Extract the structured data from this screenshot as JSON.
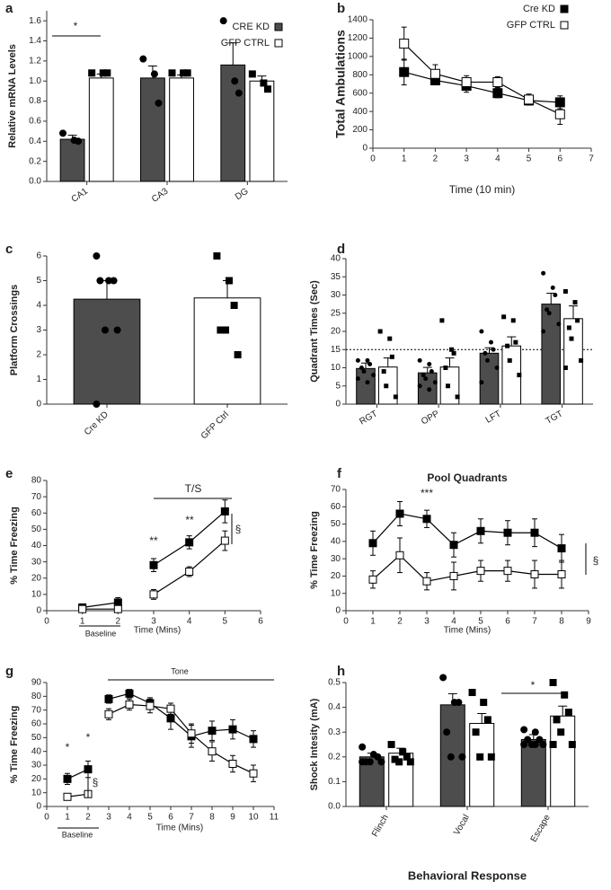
{
  "chart_data": [
    {
      "type": "bar",
      "panel": "a",
      "ylabel": "Relative mRNA Levels",
      "categories": [
        "CA1",
        "CA3",
        "DG"
      ],
      "series": [
        {
          "name": "CRE KD",
          "color": "#4d4d4d",
          "point_marker": "circle",
          "values": [
            0.42,
            1.03,
            1.16
          ],
          "errors": [
            0.04,
            0.12,
            0.22
          ],
          "points": [
            [
              0.48,
              0.41,
              0.4
            ],
            [
              1.22,
              1.07,
              0.78
            ],
            [
              1.6,
              1.0,
              0.88
            ]
          ]
        },
        {
          "name": "GFP CTRL",
          "color": "#ffffff",
          "point_marker": "square",
          "values": [
            1.03,
            1.03,
            1.0
          ],
          "errors": [
            0.04,
            0.03,
            0.05
          ],
          "points": [
            [
              1.08,
              1.08,
              1.08
            ],
            [
              1.08,
              1.08,
              1.08
            ],
            [
              1.07,
              0.98,
              0.92
            ]
          ]
        }
      ],
      "ylim": [
        0,
        1.7
      ],
      "yticks": [
        {
          "value": 0,
          "label": "0.0"
        },
        0.2,
        0.4,
        0.6,
        0.8,
        {
          "value": 1,
          "label": "1.0"
        },
        1.2,
        1.4,
        1.6
      ],
      "legend": "upper right",
      "annotations": [
        "*"
      ]
    },
    {
      "type": "line",
      "panel": "b",
      "xlabel": "Time  (10 min)",
      "ylabel": "Total Ambulations",
      "x": [
        1,
        2,
        3,
        4,
        5,
        6
      ],
      "series": [
        {
          "name": "Cre KD",
          "color": "#000000",
          "marker_fill": "#000000",
          "values": [
            830,
            740,
            680,
            600,
            520,
            500
          ],
          "errors": [
            140,
            50,
            70,
            50,
            50,
            70
          ]
        },
        {
          "name": "GFP CTRL",
          "color": "#000000",
          "marker_fill": "#ffffff",
          "values": [
            1140,
            810,
            720,
            720,
            530,
            370
          ],
          "errors": [
            180,
            100,
            70,
            60,
            60,
            110
          ]
        }
      ],
      "xlim": [
        0,
        7
      ],
      "xticks": [
        0,
        1,
        2,
        3,
        4,
        5,
        6,
        7
      ],
      "ylim": [
        0,
        1400
      ],
      "yticks": [
        0,
        200,
        400,
        600,
        800,
        1000,
        1200,
        1400
      ],
      "legend": "upper right"
    },
    {
      "type": "bar",
      "panel": "c",
      "ylabel": "Platform Crossings",
      "categories": [
        "Cre KD",
        "GFP Ctrl"
      ],
      "values": [
        4.25,
        4.3
      ],
      "errors": [
        0.75,
        0.7
      ],
      "colors": [
        "#4d4d4d",
        "#ffffff"
      ],
      "point_markers": [
        "circle",
        "square"
      ],
      "points": [
        [
          6,
          5,
          5,
          5,
          3,
          3,
          0
        ],
        [
          6,
          5,
          4,
          3,
          3,
          2
        ]
      ],
      "ylim": [
        0,
        6
      ],
      "yticks": [
        0,
        1,
        2,
        3,
        4,
        5,
        6
      ]
    },
    {
      "type": "bar",
      "panel": "d",
      "ylabel": "Quadrant Times (Sec)",
      "categories": [
        "RGT",
        "OPP",
        "LFT",
        "TGT"
      ],
      "series": [
        {
          "color": "#4d4d4d",
          "point_marker": "circle",
          "values": [
            9.8,
            8.6,
            14,
            27.5
          ],
          "errors": [
            1.5,
            1.5,
            1.5,
            3
          ],
          "points": [
            [
              12,
              12,
              11,
              10,
              9,
              8,
              7,
              6
            ],
            [
              12,
              11,
              9,
              8,
              7,
              6,
              5,
              4
            ],
            [
              20,
              17,
              15,
              14,
              12,
              10,
              6
            ],
            [
              36,
              32,
              30,
              26,
              25,
              22,
              20
            ]
          ]
        },
        {
          "color": "#ffffff",
          "point_marker": "square",
          "values": [
            10.2,
            10.2,
            16,
            23.5
          ],
          "errors": [
            2.5,
            2.5,
            2.5,
            3.5
          ],
          "points": [
            [
              20,
              18,
              13,
              9,
              5,
              2
            ],
            [
              23,
              15,
              14,
              10,
              5,
              2
            ],
            [
              24,
              23,
              17,
              16,
              12,
              8
            ],
            [
              31,
              28,
              23,
              21,
              18,
              12,
              10
            ]
          ]
        }
      ],
      "ylim": [
        0,
        40
      ],
      "yticks": [
        0,
        5,
        10,
        15,
        20,
        25,
        30,
        35,
        40
      ],
      "reference_line": 15
    },
    {
      "type": "line",
      "panel": "e",
      "xlabel": "Time (Mins)",
      "ylabel": "% Time Freezing",
      "x": [
        1,
        2,
        null,
        3,
        4,
        5
      ],
      "series": [
        {
          "color": "#000000",
          "marker_fill": "#000000",
          "values": [
            2,
            5,
            null,
            28,
            42,
            61
          ],
          "errors": [
            1.5,
            3,
            null,
            4,
            4,
            7
          ]
        },
        {
          "color": "#000000",
          "marker_fill": "#ffffff",
          "values": [
            1,
            1,
            null,
            10,
            24,
            43
          ],
          "errors": [
            1,
            1,
            null,
            3,
            3,
            6
          ]
        }
      ],
      "xlim": [
        0,
        6
      ],
      "xticks": [
        0,
        1,
        2,
        3,
        4,
        5,
        6
      ],
      "ylim": [
        0,
        80
      ],
      "yticks": [
        0,
        10,
        20,
        30,
        40,
        50,
        60,
        70,
        80
      ],
      "annotations": [
        "**",
        "**",
        "T/S",
        "§",
        "Baseline"
      ]
    },
    {
      "type": "line",
      "panel": "f",
      "title": "Pool Quadrants",
      "xlabel": "Time (Mins)",
      "ylabel": "% Time Freezing",
      "x": [
        1,
        2,
        3,
        4,
        5,
        6,
        7,
        8
      ],
      "series": [
        {
          "color": "#000000",
          "marker_fill": "#000000",
          "values": [
            39,
            56,
            53,
            38,
            46,
            45,
            45,
            36
          ],
          "errors": [
            7,
            7,
            5,
            7,
            7,
            7,
            8,
            8
          ]
        },
        {
          "color": "#000000",
          "marker_fill": "#ffffff",
          "values": [
            18,
            32,
            17,
            20,
            23,
            23,
            21,
            21
          ],
          "errors": [
            5,
            10,
            5,
            8,
            6,
            6,
            8,
            8
          ]
        }
      ],
      "xlim": [
        0,
        9
      ],
      "xticks": [
        0,
        1,
        2,
        3,
        4,
        5,
        6,
        7,
        8,
        9
      ],
      "ylim": [
        0,
        70
      ],
      "yticks": [
        0,
        10,
        20,
        30,
        40,
        50,
        60,
        70
      ],
      "annotations": [
        "***",
        "§"
      ]
    },
    {
      "type": "line",
      "panel": "g",
      "xlabel": "Time (Mins)",
      "ylabel": "% Time Freezing",
      "x": [
        1,
        2,
        null,
        3,
        4,
        5,
        6,
        7,
        8,
        9,
        10
      ],
      "series": [
        {
          "color": "#000000",
          "marker_fill": "#000000",
          "values": [
            20,
            27,
            null,
            78,
            82,
            75,
            64,
            51,
            55,
            56,
            49
          ],
          "errors": [
            4,
            6,
            null,
            3,
            3,
            4,
            8,
            8,
            7,
            7,
            6
          ]
        },
        {
          "color": "#000000",
          "marker_fill": "#ffffff",
          "values": [
            7,
            9,
            null,
            67,
            74,
            73,
            71,
            53,
            40,
            31,
            24
          ],
          "errors": [
            2,
            2,
            null,
            4,
            4,
            5,
            4,
            7,
            7,
            6,
            6
          ]
        }
      ],
      "xlim": [
        0,
        11
      ],
      "xticks": [
        0,
        1,
        2,
        3,
        4,
        5,
        6,
        7,
        8,
        9,
        10,
        11
      ],
      "ylim": [
        0,
        90
      ],
      "yticks": [
        0,
        10,
        20,
        30,
        40,
        50,
        60,
        70,
        80,
        90
      ],
      "annotations": [
        "Tone",
        "*",
        "*",
        "§",
        "Baseline"
      ]
    },
    {
      "type": "bar",
      "panel": "h",
      "xlabel": "Behavioral Response",
      "ylabel": "Shock Intesity (mA)",
      "categories": [
        "Flinch",
        "Vocal",
        "Escape"
      ],
      "series": [
        {
          "color": "#4d4d4d",
          "point_marker": "circle",
          "values": [
            0.2,
            0.41,
            0.27
          ],
          "errors": [
            0.015,
            0.045,
            0.02
          ],
          "points": [
            [
              0.24,
              0.21,
              0.2,
              0.18,
              0.18,
              0.18,
              0.18
            ],
            [
              0.52,
              0.42,
              0.42,
              0.3,
              0.2,
              0.2
            ],
            [
              0.31,
              0.3,
              0.27,
              0.27,
              0.25,
              0.25,
              0.25,
              0.25
            ]
          ]
        },
        {
          "color": "#ffffff",
          "point_marker": "square",
          "values": [
            0.215,
            0.335,
            0.365
          ],
          "errors": [
            0.02,
            0.04,
            0.04
          ],
          "points": [
            [
              0.25,
              0.22,
              0.2,
              0.19,
              0.18,
              0.18
            ],
            [
              0.46,
              0.42,
              0.35,
              0.3,
              0.2,
              0.2
            ],
            [
              0.5,
              0.45,
              0.38,
              0.35,
              0.3,
              0.25,
              0.25
            ]
          ]
        }
      ],
      "ylim": [
        0,
        0.5
      ],
      "yticks": [
        {
          "value": 0,
          "label": "0.0"
        },
        0.1,
        0.2,
        0.3,
        0.4,
        0.5
      ],
      "annotations": [
        "*"
      ]
    }
  ]
}
